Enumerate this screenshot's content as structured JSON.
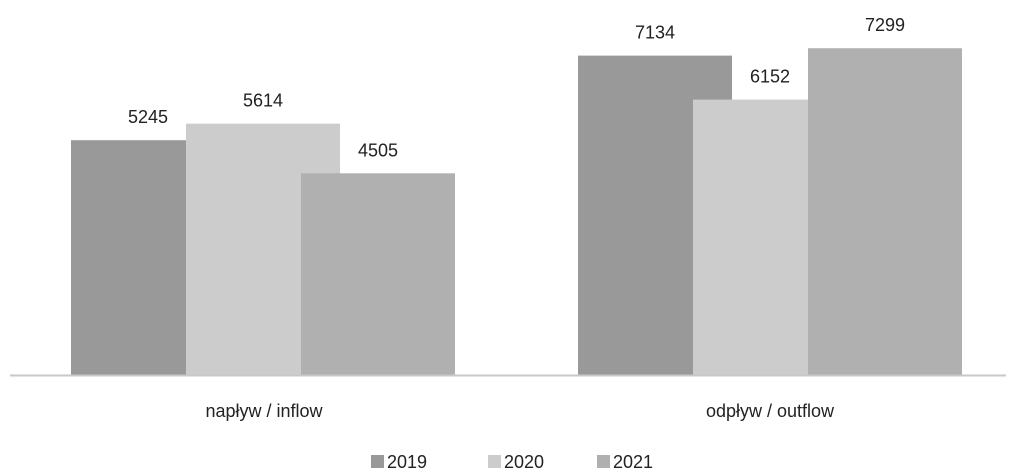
{
  "chart_data": {
    "type": "bar",
    "categories": [
      "napływ / inflow",
      "odpływ / outflow"
    ],
    "series": [
      {
        "name": "2019",
        "values": [
          5245,
          7134
        ],
        "color": "#999999"
      },
      {
        "name": "2020",
        "values": [
          5614,
          6152
        ],
        "color": "#cccccc"
      },
      {
        "name": "2021",
        "values": [
          4505,
          7299
        ],
        "color": "#b0b0b0"
      }
    ],
    "ylim": [
      0,
      8000
    ],
    "grid": false,
    "legend_position": "bottom-center",
    "overlapping_bars": true,
    "data_labels": true
  }
}
